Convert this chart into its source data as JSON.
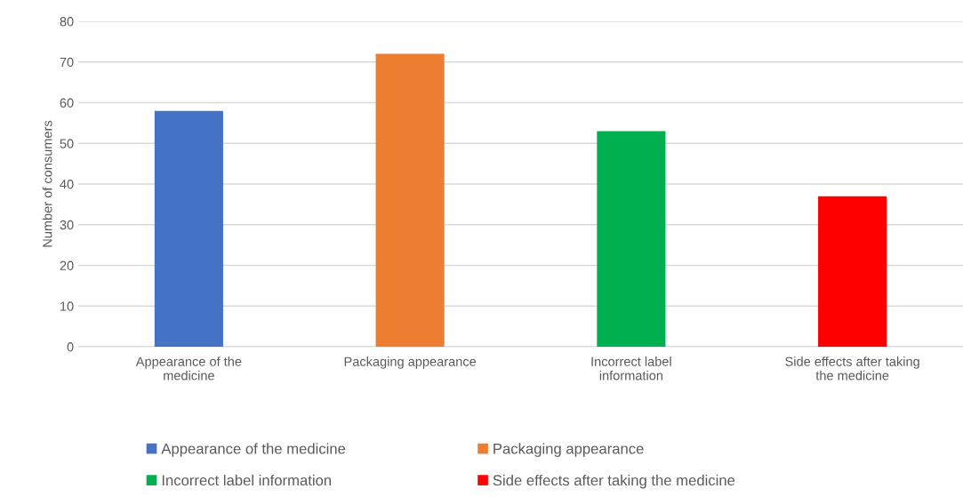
{
  "chart_data": {
    "type": "bar",
    "ylabel": "Number of consumers",
    "categories": [
      "Appearance of the medicine",
      "Packaging appearance",
      "Incorrect label information",
      "Side effects after taking the medicine"
    ],
    "series": [
      {
        "name": "Appearance of the medicine",
        "color": "#4472c4",
        "values": [
          58,
          null,
          null,
          null
        ]
      },
      {
        "name": "Packaging appearance",
        "color": "#ed7d31",
        "values": [
          null,
          72,
          null,
          null
        ]
      },
      {
        "name": "Incorrect label information",
        "color": "#00b050",
        "values": [
          null,
          null,
          53,
          null
        ]
      },
      {
        "name": "Side effects after taking the medicine",
        "color": "#ff0000",
        "values": [
          null,
          null,
          null,
          37
        ]
      }
    ],
    "ylim": [
      0,
      80
    ],
    "yticks": [
      0,
      10,
      20,
      30,
      40,
      50,
      60,
      70,
      80
    ],
    "grid": "y",
    "legend": "bottom"
  }
}
